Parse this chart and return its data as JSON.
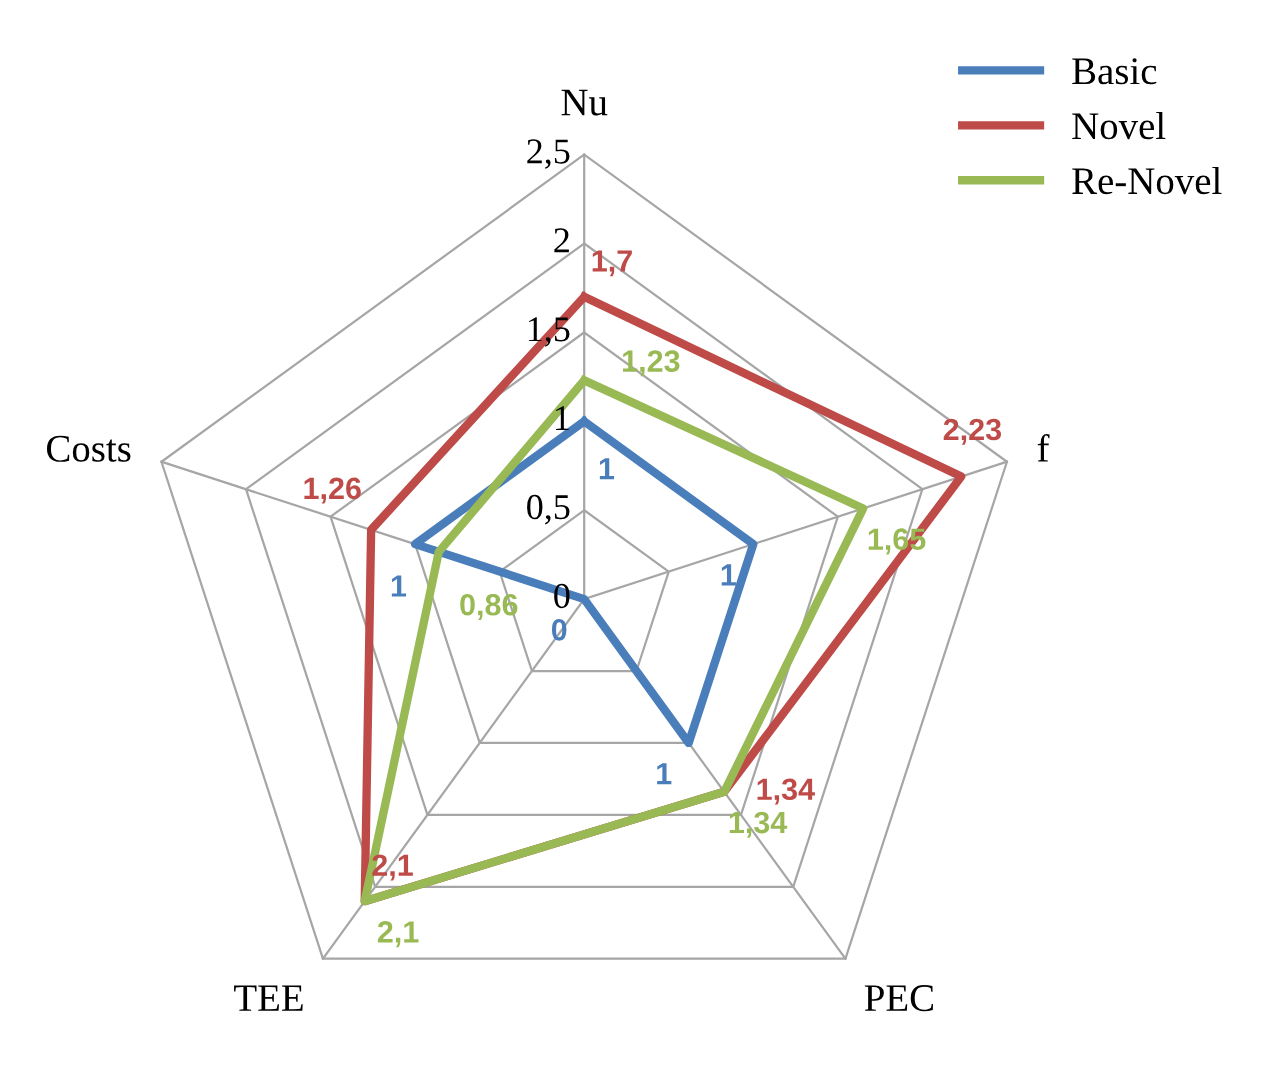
{
  "chart_data": {
    "type": "radar",
    "categories": [
      "Nu",
      "f",
      "PEC",
      "TEE",
      "Costs"
    ],
    "series": [
      {
        "name": "Basic",
        "color": "#4a7ebb",
        "values": [
          1,
          1,
          1,
          0,
          1
        ],
        "value_labels": [
          "1",
          "1",
          "1",
          "0",
          "1"
        ]
      },
      {
        "name": "Novel",
        "color": "#be4b48",
        "values": [
          1.7,
          2.23,
          1.34,
          2.1,
          1.26
        ],
        "value_labels": [
          "1,7",
          "2,23",
          "1,34",
          "2,1",
          "1,26"
        ]
      },
      {
        "name": "Re-Novel",
        "color": "#98b954",
        "values": [
          1.23,
          1.65,
          1.34,
          2.1,
          0.86
        ],
        "value_labels": [
          "1,23",
          "1,65",
          "1,34",
          "2,1",
          "0,86"
        ]
      }
    ],
    "ylim": [
      0,
      2.5
    ],
    "yticks": [
      0,
      {
        "value": 0.5,
        "label": "0,5"
      },
      1,
      {
        "value": 1.5,
        "label": "1,5"
      },
      2,
      {
        "value": 2.5,
        "label": "2,5"
      }
    ],
    "grid": true,
    "legend": "top right"
  }
}
